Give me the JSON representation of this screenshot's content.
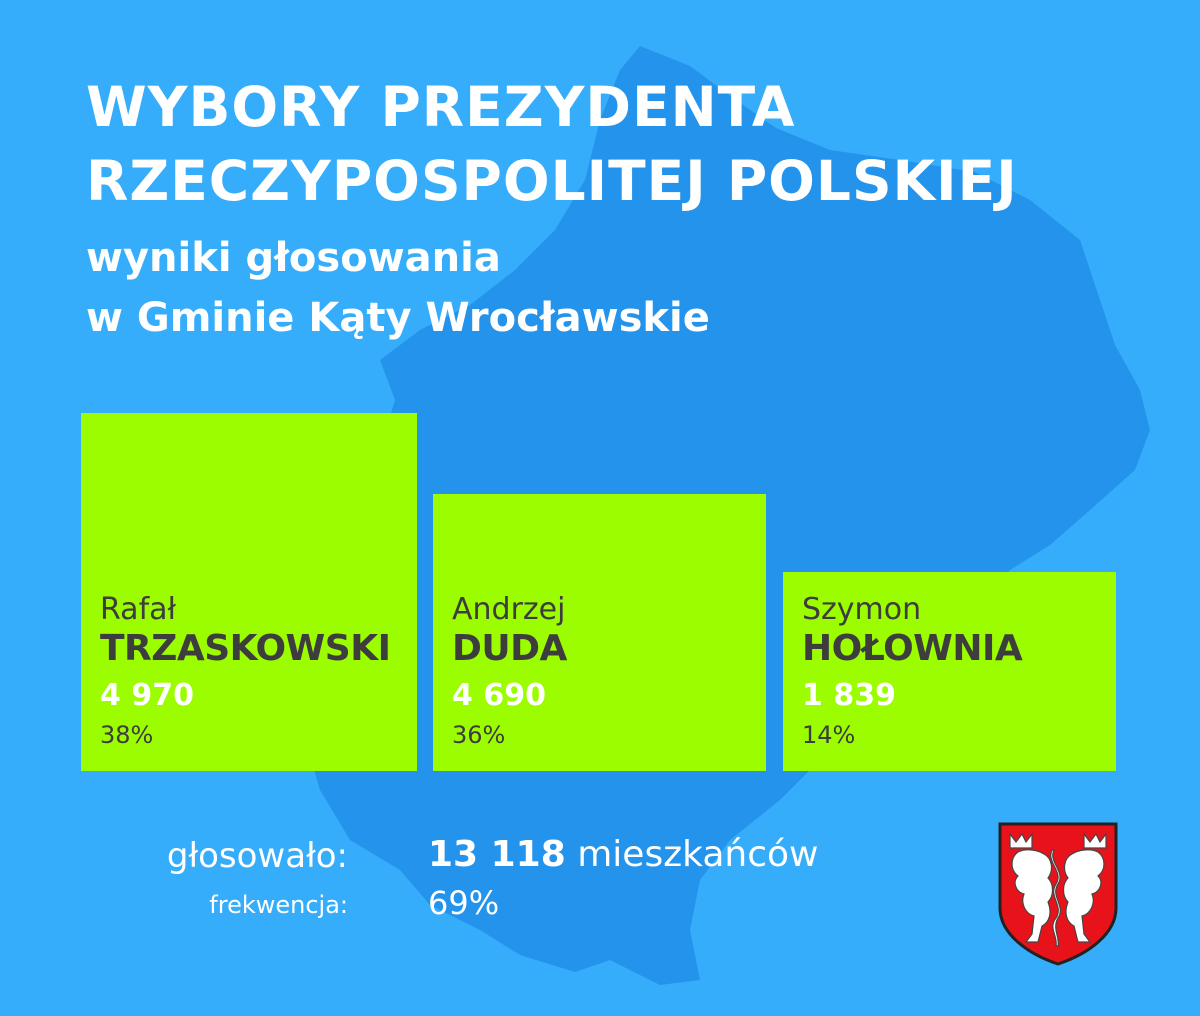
{
  "header": {
    "title_line1": "WYBORY PREZYDENTA",
    "title_line2": "RZECZYPOSPOLITEJ POLSKIEJ",
    "subtitle_line1": "wyniki głosowania",
    "subtitle_line2": "w Gminie Kąty Wrocławskie"
  },
  "candidates": [
    {
      "first_name": "Rafał",
      "last_name": "TRZASKOWSKI",
      "votes": "4 970",
      "percent": "38%"
    },
    {
      "first_name": "Andrzej",
      "last_name": "DUDA",
      "votes": "4 690",
      "percent": "36%"
    },
    {
      "first_name": "Szymon",
      "last_name": "HOŁOWNIA",
      "votes": "1 839",
      "percent": "14%"
    }
  ],
  "summary": {
    "voted_label": "głosowało:",
    "voted_value": "13 118",
    "voted_unit": "mieszkańców",
    "turnout_label": "frekwencja:",
    "turnout_value": "69%"
  },
  "colors": {
    "background": "#36adfa",
    "map_shape": "#2393ec",
    "bar": "#9bfd00",
    "text_dark": "#3d3d3d",
    "crest_red": "#e8131a"
  },
  "icons": {
    "map": "gmina-map-silhouette",
    "crest": "coat-of-arms-crest"
  }
}
